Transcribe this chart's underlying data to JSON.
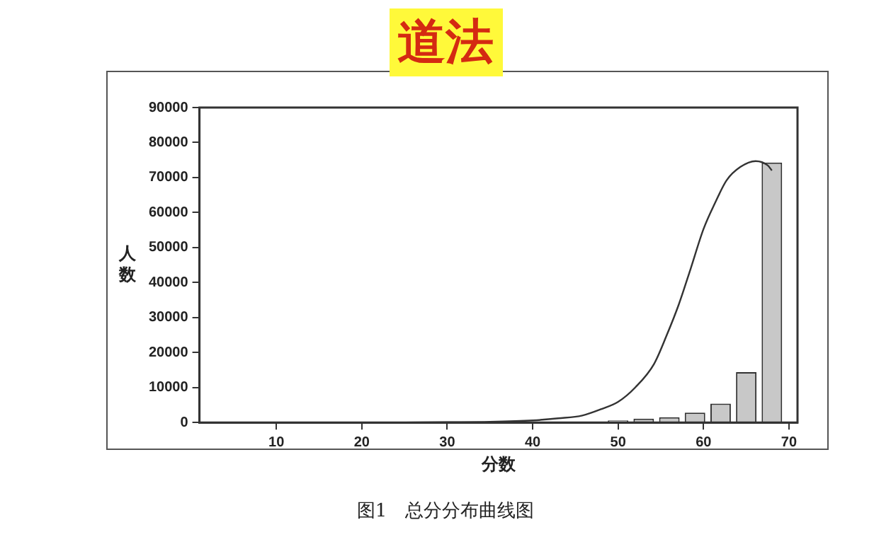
{
  "chart_data": {
    "type": "histogram",
    "title": "道法",
    "xlabel": "分数",
    "ylabel": "人数",
    "annotations": [
      "图1　总分分布曲线图"
    ],
    "bins": [
      48.5,
      51.5,
      54.5,
      57.5,
      60.5,
      63.5,
      66.5,
      69.5
    ],
    "values": [
      600,
      1100,
      1500,
      2800,
      5400,
      14400,
      74300
    ],
    "color": "#c8c8c8",
    "series": [
      {
        "type": "line",
        "color": "#333333",
        "x": [
          25,
          30,
          35,
          40,
          43,
          45.8,
          48,
          50,
          52,
          54.2,
          55.7,
          57.1,
          58.5,
          60,
          61.4,
          62.7,
          64.3,
          66.1,
          67.5,
          68
        ],
        "values": [
          0,
          100,
          200,
          600,
          1200,
          2000,
          3800,
          5900,
          10000,
          16700,
          25000,
          33700,
          44000,
          55300,
          63000,
          69200,
          73000,
          74700,
          73500,
          72000
        ]
      }
    ],
    "xlim": [
      1,
      71
    ],
    "xticks": [
      10,
      20,
      30,
      40,
      50,
      60,
      70
    ],
    "ylim": [
      0,
      90000
    ],
    "yticks": [
      0,
      10000,
      20000,
      30000,
      40000,
      50000,
      60000,
      70000,
      80000,
      90000
    ],
    "grid": false,
    "legend": false,
    "marker": "none"
  }
}
